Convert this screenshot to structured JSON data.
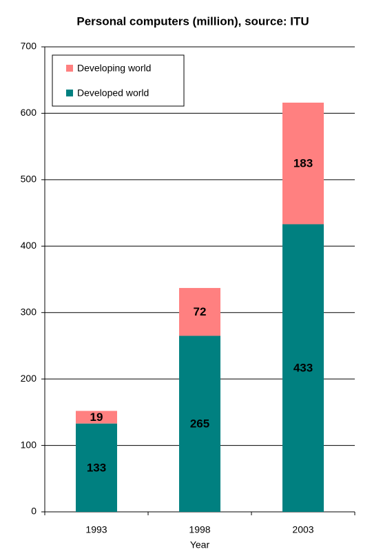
{
  "chart_data": {
    "type": "stacked_bar",
    "title": "Personal computers (million), source: ITU",
    "x_label": "Year",
    "categories": [
      "1993",
      "1998",
      "2003"
    ],
    "series": [
      {
        "name": "Developed world",
        "color": "#008080",
        "values": [
          133,
          265,
          433
        ]
      },
      {
        "name": "Developing world",
        "color": "#ff8080",
        "values": [
          19,
          72,
          183
        ]
      }
    ],
    "ylim": [
      0,
      700
    ],
    "yticks": [
      0,
      100,
      200,
      300,
      400,
      500,
      600,
      700
    ],
    "grid": true,
    "legend": "top-left"
  }
}
